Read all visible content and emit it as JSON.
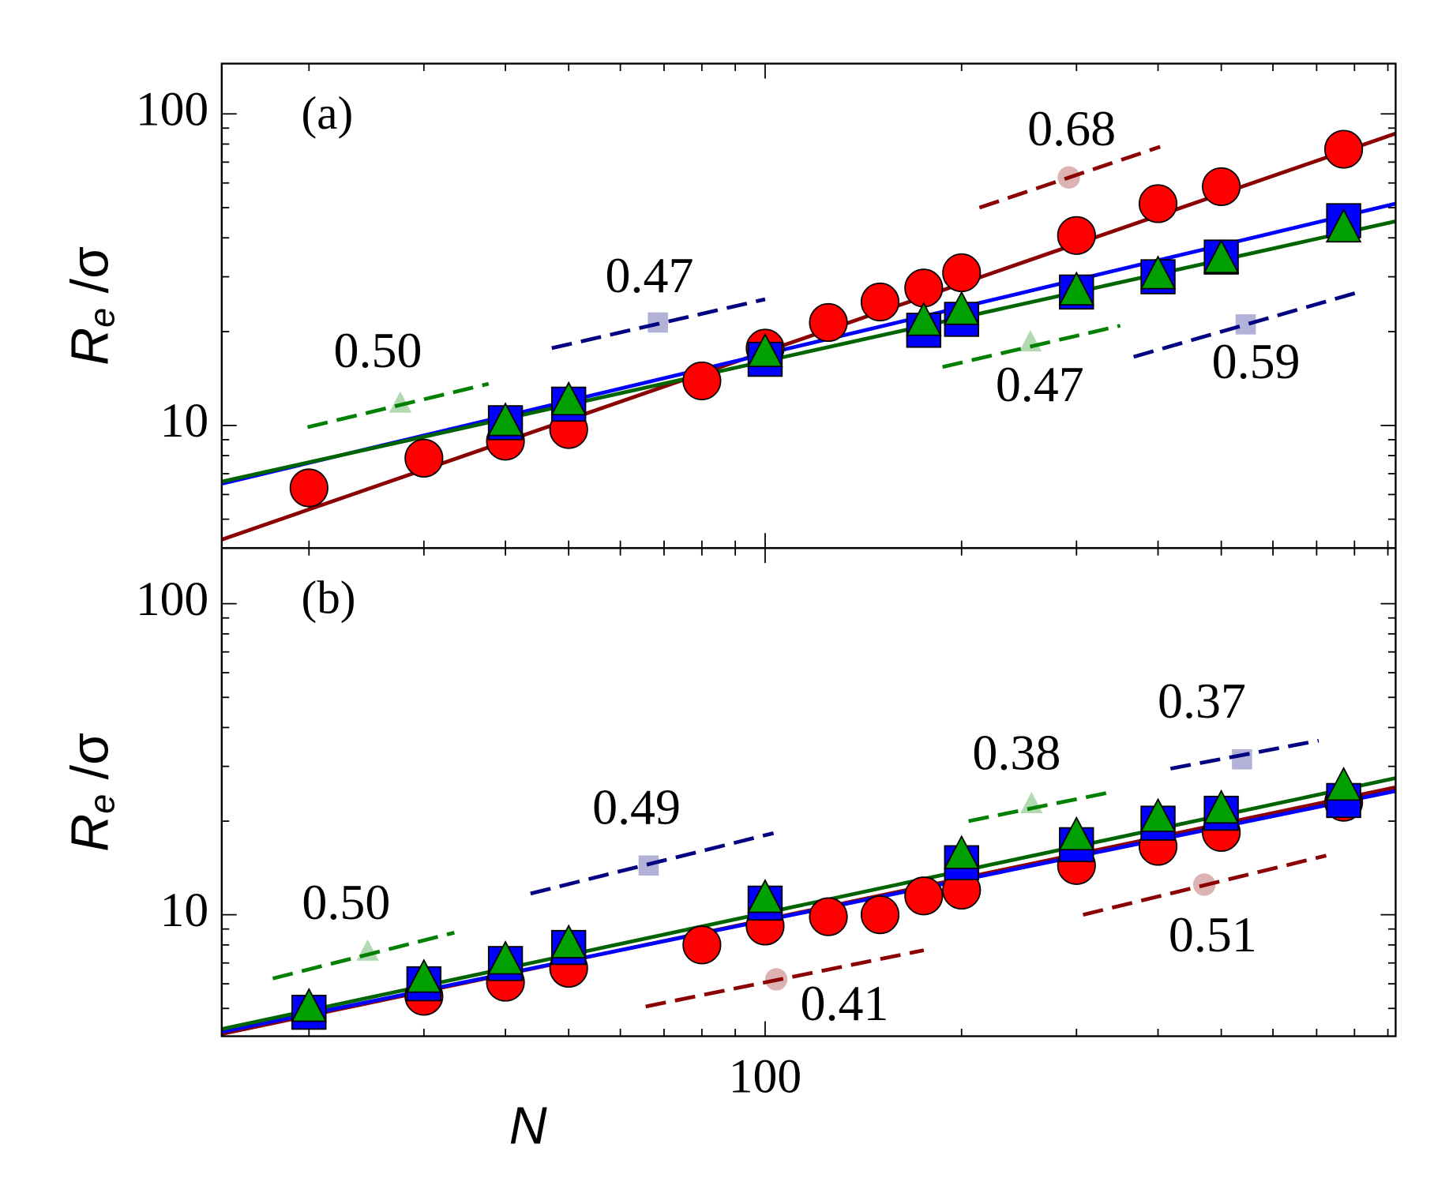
{
  "chart_data": [
    {
      "type": "scatter",
      "panel": "(a)",
      "ylabel": {
        "main": "R",
        "sub": "e",
        "tail": " /σ"
      },
      "xscale": "log",
      "yscale": "log",
      "xlim": [
        14.7,
        925
      ],
      "ylim": [
        4.04,
        145
      ],
      "xticks": [
        100
      ],
      "xticklabels": false,
      "xminorticks": [
        20,
        30,
        40,
        50,
        60,
        70,
        80,
        90,
        200,
        300,
        400,
        500,
        600,
        700,
        800,
        900
      ],
      "yticks": [
        10,
        100
      ],
      "yminorticks": [
        5,
        6,
        7,
        8,
        9,
        20,
        30,
        40,
        50,
        60,
        70,
        80,
        90
      ],
      "series": [
        {
          "marker": "circle",
          "color": "#ff0000",
          "x": [
            20,
            30,
            40,
            50,
            80,
            100,
            125,
            150,
            175,
            200,
            300,
            400,
            500,
            770
          ],
          "values": [
            6.3,
            7.85,
            8.9,
            9.7,
            13.9,
            17.7,
            21.4,
            24.9,
            27.6,
            30.9,
            40.7,
            51.5,
            58.4,
            77
          ]
        },
        {
          "marker": "square",
          "color": "#0000ff",
          "x": [
            40,
            50,
            100,
            175,
            200,
            300,
            400,
            500,
            770
          ],
          "values": [
            10.2,
            11.7,
            16.3,
            20.2,
            21.9,
            26.8,
            30.0,
            34.7,
            45.4
          ]
        },
        {
          "marker": "triangle",
          "color": "#00a000",
          "x": [
            40,
            50,
            100,
            175,
            200,
            300,
            400,
            500,
            770
          ],
          "values": [
            10.2,
            11.9,
            17.0,
            21.4,
            23.2,
            26.8,
            30.2,
            34.0,
            42.7
          ]
        }
      ],
      "fits": [
        {
          "color": "#8b0000",
          "x": [
            14.7,
            925
          ],
          "values": [
            4.3,
            86.5
          ]
        },
        {
          "color": "#0000ff",
          "x": [
            14.7,
            925
          ],
          "values": [
            6.5,
            51.5
          ]
        },
        {
          "color": "#006400",
          "x": [
            14.7,
            925
          ],
          "values": [
            6.6,
            45.2
          ]
        }
      ],
      "guides": [
        {
          "label": "0.50",
          "color": "#008000",
          "marker": "triangle",
          "x": [
            19.9,
            37.7
          ],
          "values": [
            9.87,
            13.6
          ],
          "marker_x": 27.6,
          "marker_y": 11.7
        },
        {
          "label": "0.47",
          "color": "#000080",
          "marker": "square",
          "x": [
            47.1,
            100
          ],
          "values": [
            17.7,
            25.4
          ],
          "marker_x": 68.5,
          "marker_y": 21.4
        },
        {
          "label": "0.68",
          "color": "#8b0000",
          "marker": "circle",
          "x": [
            213,
            403
          ],
          "values": [
            50.0,
            78.4
          ],
          "marker_x": 292,
          "marker_y": 62.5
        },
        {
          "label": "0.47",
          "color": "#008000",
          "marker": "triangle",
          "x": [
            187,
            350
          ],
          "values": [
            15.4,
            20.9
          ],
          "marker_x": 255,
          "marker_y": 18.4
        },
        {
          "label": "0.59",
          "color": "#000080",
          "marker": "square",
          "x": [
            367,
            818
          ],
          "values": [
            16.6,
            26.9
          ],
          "marker_x": 545,
          "marker_y": 21.1
        }
      ]
    },
    {
      "type": "scatter",
      "panel": "(b)",
      "ylabel": {
        "main": "R",
        "sub": "e",
        "tail": " /σ"
      },
      "xlabel": "N",
      "xscale": "log",
      "yscale": "log",
      "xlim": [
        14.7,
        925
      ],
      "ylim": [
        4.07,
        151
      ],
      "xticks": [
        100
      ],
      "xticklabels": true,
      "xminorticks": [
        20,
        30,
        40,
        50,
        60,
        70,
        80,
        90,
        200,
        300,
        400,
        500,
        600,
        700,
        800,
        900
      ],
      "yticks": [
        10,
        100
      ],
      "yminorticks": [
        5,
        6,
        7,
        8,
        9,
        20,
        30,
        40,
        50,
        60,
        70,
        80,
        90
      ],
      "series": [
        {
          "marker": "circle",
          "color": "#ff0000",
          "x": [
            30,
            40,
            50,
            80,
            100,
            125,
            150,
            175,
            200,
            300,
            400,
            500,
            770
          ],
          "values": [
            5.47,
            6.07,
            6.73,
            8.0,
            9.2,
            9.86,
            10.0,
            11.5,
            12.0,
            14.4,
            16.6,
            18.4,
            23.0
          ]
        },
        {
          "marker": "square",
          "color": "#0000ff",
          "x": [
            20,
            30,
            40,
            50,
            100,
            200,
            300,
            400,
            500,
            770
          ],
          "values": [
            4.86,
            6.0,
            6.97,
            7.85,
            10.9,
            14.7,
            16.8,
            19.7,
            21.2,
            23.3
          ]
        },
        {
          "marker": "triangle",
          "color": "#00a000",
          "x": [
            20,
            30,
            40,
            50,
            100,
            200,
            300,
            400,
            500,
            770
          ],
          "values": [
            5.0,
            6.2,
            7.1,
            8.0,
            11.2,
            15.5,
            17.8,
            20.4,
            21.7,
            25.7
          ]
        }
      ],
      "fits": [
        {
          "color": "#8b0000",
          "x": [
            14.7,
            925
          ],
          "values": [
            4.14,
            25.7
          ]
        },
        {
          "color": "#0000ff",
          "x": [
            14.7,
            925
          ],
          "values": [
            4.2,
            25.0
          ]
        },
        {
          "color": "#006400",
          "x": [
            14.7,
            925
          ],
          "values": [
            4.29,
            27.5
          ]
        }
      ],
      "guides": [
        {
          "label": "0.50",
          "color": "#008000",
          "marker": "triangle",
          "x": [
            17.6,
            33.4
          ],
          "values": [
            6.24,
            8.76
          ],
          "marker_x": 24.6,
          "marker_y": 7.58
        },
        {
          "label": "0.49",
          "color": "#000080",
          "marker": "square",
          "x": [
            43.7,
            103
          ],
          "values": [
            11.7,
            18.3
          ],
          "marker_x": 66.3,
          "marker_y": 14.4
        },
        {
          "label": "0.41",
          "color": "#8b0000",
          "marker": "circle",
          "x": [
            65.6,
            175
          ],
          "values": [
            5.07,
            7.69
          ],
          "marker_x": 104,
          "marker_y": 6.2
        },
        {
          "label": "0.38",
          "color": "#008000",
          "marker": "triangle",
          "x": [
            205,
            336
          ],
          "values": [
            20.0,
            24.7
          ],
          "marker_x": 256,
          "marker_y": 22.6
        },
        {
          "label": "0.37",
          "color": "#000080",
          "marker": "square",
          "x": [
            418,
            705
          ],
          "values": [
            29.5,
            36.3
          ],
          "marker_x": 538,
          "marker_y": 31.6
        },
        {
          "label": "0.51",
          "color": "#8b0000",
          "marker": "circle",
          "x": [
            307,
            724
          ],
          "values": [
            10.0,
            15.5
          ],
          "marker_x": 471,
          "marker_y": 12.5
        }
      ]
    }
  ]
}
